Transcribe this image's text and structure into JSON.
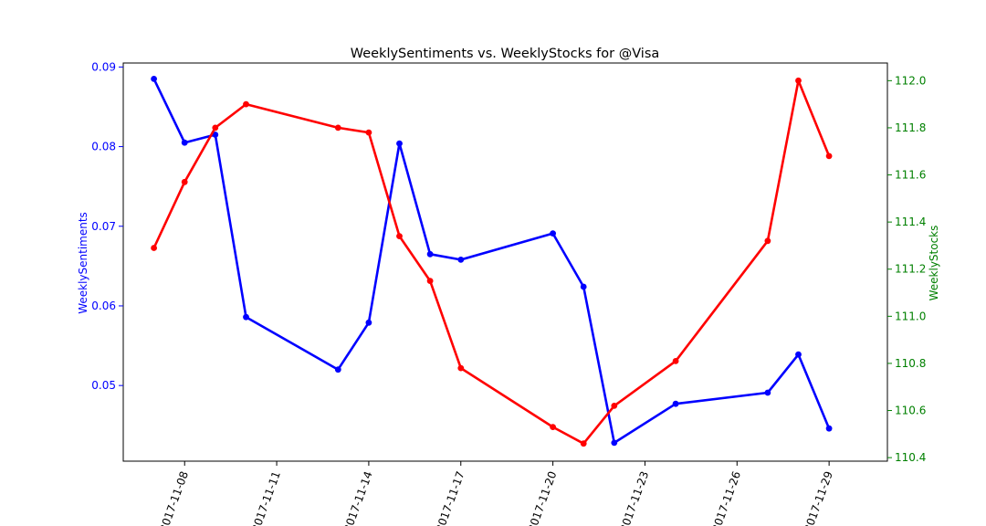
{
  "chart_data": {
    "type": "line",
    "title": "WeeklySentiments vs. WeeklyStocks for @Visa",
    "xlabel": "",
    "ylabel_left": "WeeklySentiments",
    "ylabel_right": "WeeklyStocks",
    "colors": {
      "left": "#0000ff",
      "right": "#ff0000",
      "left_axis": "#0000ff",
      "right_axis": "#008000"
    },
    "x_ticks": [
      "2017-11-08",
      "2017-11-11",
      "2017-11-14",
      "2017-11-17",
      "2017-11-20",
      "2017-11-23",
      "2017-11-26",
      "2017-11-29"
    ],
    "left_ticks": [
      "0.05",
      "0.06",
      "0.07",
      "0.08",
      "0.09"
    ],
    "right_ticks": [
      "110.4",
      "110.6",
      "110.8",
      "111.0",
      "111.2",
      "111.4",
      "111.6",
      "111.8",
      "112.0"
    ],
    "ylim_left": [
      0.0405,
      0.0905
    ],
    "ylim_right": [
      110.385,
      112.075
    ],
    "x_range_days": [
      -2.0,
      22.9
    ],
    "series": [
      {
        "name": "WeeklySentiments",
        "axis": "left",
        "dates": [
          "2017-11-07",
          "2017-11-08",
          "2017-11-09",
          "2017-11-10",
          "2017-11-13",
          "2017-11-14",
          "2017-11-15",
          "2017-11-16",
          "2017-11-17",
          "2017-11-20",
          "2017-11-21",
          "2017-11-22",
          "2017-11-24",
          "2017-11-27",
          "2017-11-28",
          "2017-11-29"
        ],
        "values": [
          0.0885,
          0.0805,
          0.0815,
          0.0586,
          0.052,
          0.0579,
          0.0804,
          0.0665,
          0.0658,
          0.0691,
          0.0624,
          0.0428,
          0.0477,
          0.0491,
          0.0539,
          0.0446
        ]
      },
      {
        "name": "WeeklyStocks",
        "axis": "right",
        "dates": [
          "2017-11-07",
          "2017-11-08",
          "2017-11-09",
          "2017-11-10",
          "2017-11-13",
          "2017-11-14",
          "2017-11-15",
          "2017-11-16",
          "2017-11-17",
          "2017-11-20",
          "2017-11-21",
          "2017-11-22",
          "2017-11-24",
          "2017-11-27",
          "2017-11-28",
          "2017-11-29"
        ],
        "values": [
          111.29,
          111.57,
          111.8,
          111.9,
          111.8,
          111.78,
          111.34,
          111.15,
          110.78,
          110.53,
          110.46,
          110.62,
          110.81,
          111.32,
          112.0,
          111.68
        ]
      }
    ]
  }
}
